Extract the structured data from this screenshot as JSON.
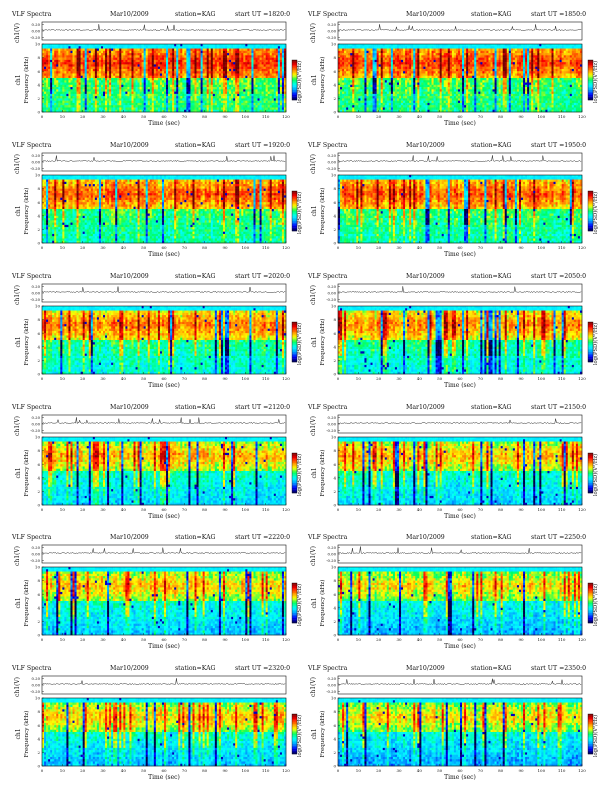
{
  "chart_data": {
    "type": "heatmap",
    "grid": false,
    "colorbar": {
      "label": "log(PSD)(V²/Hz)",
      "colors": [
        "#00004a",
        "#0000ff",
        "#00a0ff",
        "#00ffff",
        "#00ff60",
        "#ffff00",
        "#ff8000",
        "#ff0000",
        "#700000"
      ]
    },
    "common": {
      "title": "VLF Spectra",
      "date": "Mar10/2009",
      "station": "station=KAG",
      "ut_prefix": "start  UT  =",
      "top_ylabel": "ch1(V)",
      "ylabel": "Frequency  (kHz)",
      "ylabel_ch": "ch1",
      "xlabel": "Time  (sec)",
      "xlim": [
        0,
        120
      ],
      "ylim": [
        0,
        10
      ],
      "x_ticks": [
        "0",
        "10",
        "20",
        "30",
        "40",
        "50",
        "60",
        "70",
        "80",
        "90",
        "100",
        "110",
        "120"
      ],
      "y_ticks": [
        "0",
        "2",
        "4",
        "6",
        "8",
        "10"
      ]
    },
    "panels": [
      {
        "ut": "1820:0",
        "top_ticks": [
          "0.20",
          "0.00",
          "-0.20"
        ],
        "intensity": 0.88
      },
      {
        "ut": "1850:0",
        "top_ticks": [
          "0.20",
          "0.00",
          "-0.20"
        ],
        "intensity": 0.86
      },
      {
        "ut": "1920:0",
        "top_ticks": [
          "0.20",
          "0.00",
          "-0.20"
        ],
        "intensity": 0.8
      },
      {
        "ut": "1950:0",
        "top_ticks": [
          "0.20",
          "0.00",
          "-0.20"
        ],
        "intensity": 0.79
      },
      {
        "ut": "2020:0",
        "top_ticks": [
          "0.20",
          "0.00",
          "-0.20"
        ],
        "intensity": 0.68
      },
      {
        "ut": "2050:0",
        "top_ticks": [
          "0.20",
          "0.00",
          "-0.20"
        ],
        "intensity": 0.66
      },
      {
        "ut": "2120:0",
        "top_ticks": [
          "0.20",
          "0.00",
          "-0.20"
        ],
        "intensity": 0.55
      },
      {
        "ut": "2150:0",
        "top_ticks": [
          "0.20",
          "0.00",
          "-0.20"
        ],
        "intensity": 0.52
      },
      {
        "ut": "2220:0",
        "top_ticks": [
          "0.20",
          "0.00",
          "-0.20"
        ],
        "intensity": 0.5
      },
      {
        "ut": "2250:0",
        "top_ticks": [
          "0.20",
          "0.00",
          "-0.20"
        ],
        "intensity": 0.45
      },
      {
        "ut": "2320:0",
        "top_ticks": [
          "0.20",
          "0.00",
          "-0.20"
        ],
        "intensity": 0.47
      },
      {
        "ut": "2350:0",
        "top_ticks": [
          "0.20",
          "0.00",
          "-0.20"
        ],
        "intensity": 0.42
      }
    ]
  }
}
